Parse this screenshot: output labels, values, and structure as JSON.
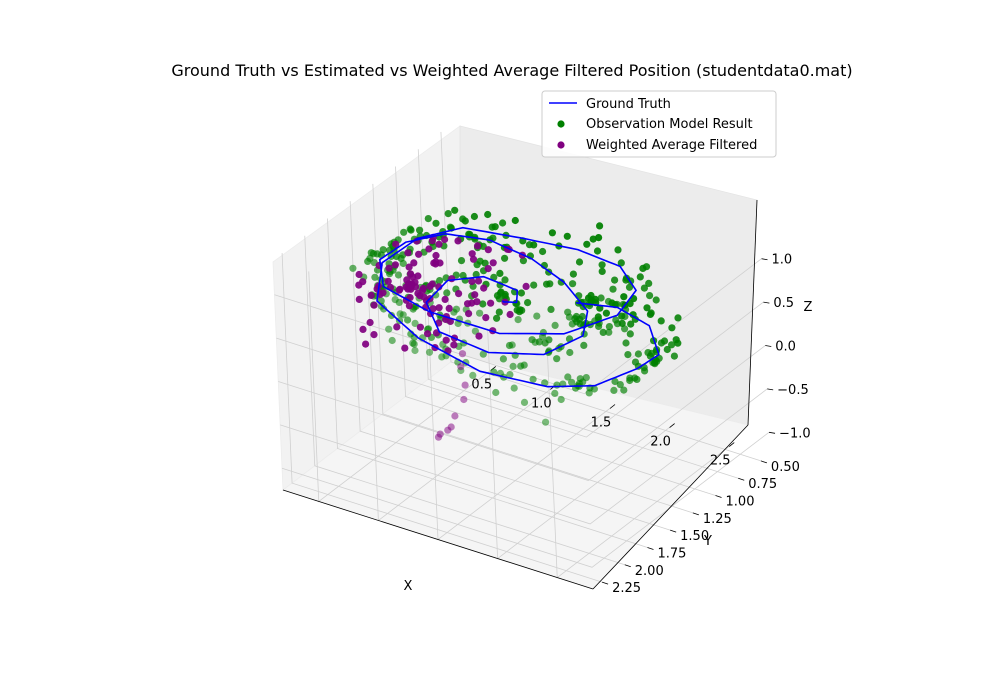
{
  "chart_data": {
    "type": "scatter",
    "projection": "3d",
    "title": "Ground Truth vs Estimated vs Weighted Average Filtered Position (studentdata0.mat)",
    "xlabel": "X",
    "ylabel": "Y",
    "zlabel": "Z",
    "xlim": [
      0.2,
      2.8
    ],
    "ylim": [
      0.4,
      2.35
    ],
    "zlim": [
      -1.25,
      1.4
    ],
    "xticks": [
      "0.5",
      "1.0",
      "1.5",
      "2.0",
      "2.5"
    ],
    "yticks": [
      "0.50",
      "0.75",
      "1.00",
      "1.25",
      "1.50",
      "1.75",
      "2.00",
      "2.25"
    ],
    "zticks": [
      "−1.0",
      "−0.5",
      "0.0",
      "0.5",
      "1.0"
    ],
    "grid": true,
    "legend_position": "top-right",
    "series": [
      {
        "name": "Ground Truth",
        "kind": "line",
        "color": "#0000ff",
        "points": [
          [
            1.35,
            0.58,
            0.0
          ],
          [
            1.7,
            0.58,
            0.1
          ],
          [
            2.1,
            0.75,
            0.2
          ],
          [
            2.45,
            1.1,
            0.3
          ],
          [
            2.5,
            1.4,
            0.4
          ],
          [
            2.45,
            1.8,
            0.5
          ],
          [
            2.25,
            2.05,
            0.6
          ],
          [
            1.8,
            2.2,
            0.7
          ],
          [
            1.25,
            2.15,
            0.8
          ],
          [
            0.75,
            1.95,
            0.85
          ],
          [
            0.45,
            1.5,
            0.8
          ],
          [
            0.4,
            1.05,
            0.7
          ],
          [
            0.55,
            0.75,
            0.65
          ],
          [
            0.95,
            0.62,
            0.6
          ],
          [
            1.4,
            0.6,
            0.65
          ],
          [
            1.85,
            0.72,
            0.75
          ],
          [
            2.2,
            1.0,
            0.85
          ],
          [
            2.35,
            1.4,
            0.95
          ],
          [
            2.25,
            1.85,
            1.05
          ],
          [
            1.9,
            2.1,
            1.1
          ],
          [
            1.35,
            2.15,
            1.15
          ],
          [
            0.85,
            2.0,
            1.1
          ],
          [
            0.55,
            1.65,
            1.0
          ],
          [
            0.5,
            1.3,
            0.9
          ],
          [
            0.6,
            1.0,
            0.8
          ],
          [
            0.85,
            0.85,
            0.72
          ],
          [
            1.2,
            0.85,
            0.66
          ],
          [
            1.55,
            0.95,
            0.62
          ],
          [
            1.9,
            1.15,
            0.6
          ],
          [
            2.05,
            1.4,
            0.58
          ],
          [
            1.95,
            1.7,
            0.56
          ],
          [
            1.6,
            1.85,
            0.55
          ],
          [
            1.15,
            1.8,
            0.55
          ],
          [
            0.85,
            1.55,
            0.56
          ],
          [
            0.8,
            1.25,
            0.55
          ],
          [
            0.95,
            1.05,
            0.5
          ],
          [
            1.15,
            0.95,
            0.35
          ],
          [
            1.1,
            0.9,
            0.15
          ],
          [
            0.95,
            0.85,
            0.05
          ],
          [
            0.9,
            0.8,
            0.0
          ]
        ]
      },
      {
        "name": "Observation Model Result",
        "kind": "scatter",
        "color": "#008000",
        "count": 380,
        "seed": 7,
        "noise": 0.09
      },
      {
        "name": "Weighted Average Filtered",
        "kind": "scatter",
        "color": "#800080",
        "count": 110,
        "seed": 13,
        "tail": [
          [
            0.95,
            1.3,
            -0.55
          ],
          [
            0.95,
            1.32,
            -0.7
          ],
          [
            0.9,
            1.36,
            -0.88
          ],
          [
            0.88,
            1.38,
            -1.0
          ],
          [
            0.85,
            1.38,
            -1.05
          ],
          [
            0.8,
            1.4,
            -1.1
          ],
          [
            0.8,
            1.42,
            -1.12
          ],
          [
            0.9,
            1.25,
            -0.25
          ],
          [
            0.92,
            1.3,
            -0.35
          ]
        ]
      }
    ]
  }
}
